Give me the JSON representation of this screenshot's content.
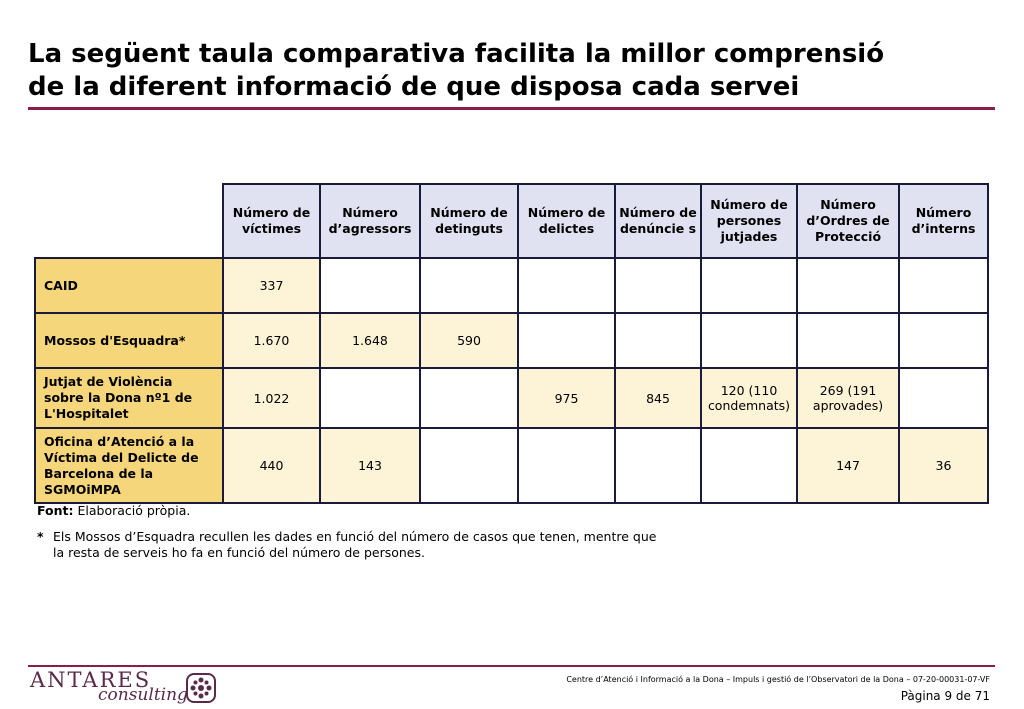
{
  "title": {
    "line1": "La següent taula comparativa facilita la millor comprensió",
    "line2": "de la diferent informació de que disposa cada servei"
  },
  "table": {
    "columns": [
      "Número de víctimes",
      "Número d’agressors",
      "Número de detinguts",
      "Número de delictes",
      "Número de denúncie s",
      "Número de persones jutjades",
      "Número d’Ordres de Protecció",
      "Número d’interns"
    ],
    "rows": [
      {
        "label": "CAID",
        "cells": [
          "337",
          "",
          "",
          "",
          "",
          "",
          "",
          ""
        ]
      },
      {
        "label": "Mossos d'Esquadra*",
        "cells": [
          "1.670",
          "1.648",
          "590",
          "",
          "",
          "",
          "",
          ""
        ]
      },
      {
        "label": "Jutjat de Violència sobre la Dona nº1 de L'Hospitalet",
        "cells": [
          "1.022",
          "",
          "",
          "975",
          "845",
          "120 (110 condemnats)",
          "269 (191 aprovades)",
          ""
        ]
      },
      {
        "label": "Oficina d’Atenció a la Víctima del Delicte de Barcelona de la SGMOiMPA",
        "cells": [
          "440",
          "143",
          "",
          "",
          "",
          "",
          "147",
          "36"
        ]
      }
    ]
  },
  "notes": {
    "source_label": "Font:",
    "source_text": "Elaboració pròpia.",
    "star": "*",
    "star_text": "Els Mossos d’Esquadra recullen les dades en funció del número de casos que tenen, mentre que la resta de serveis ho fa en funció del número de persones."
  },
  "footer": {
    "logo_name": "ANTARES",
    "logo_sub": "consulting",
    "doc_ref": "Centre d’Atenció i Informació a la Dona – Impuls i gestió de l’Observatori de la Dona – 07-20-00031-07-VF",
    "page": "Pàgina 9 de 71"
  },
  "colors": {
    "accent": "#8c1c4a",
    "header_fill": "#e0e2f2",
    "rowhead_fill": "#f6d67a",
    "cell_fill": "#fdf3d6"
  }
}
